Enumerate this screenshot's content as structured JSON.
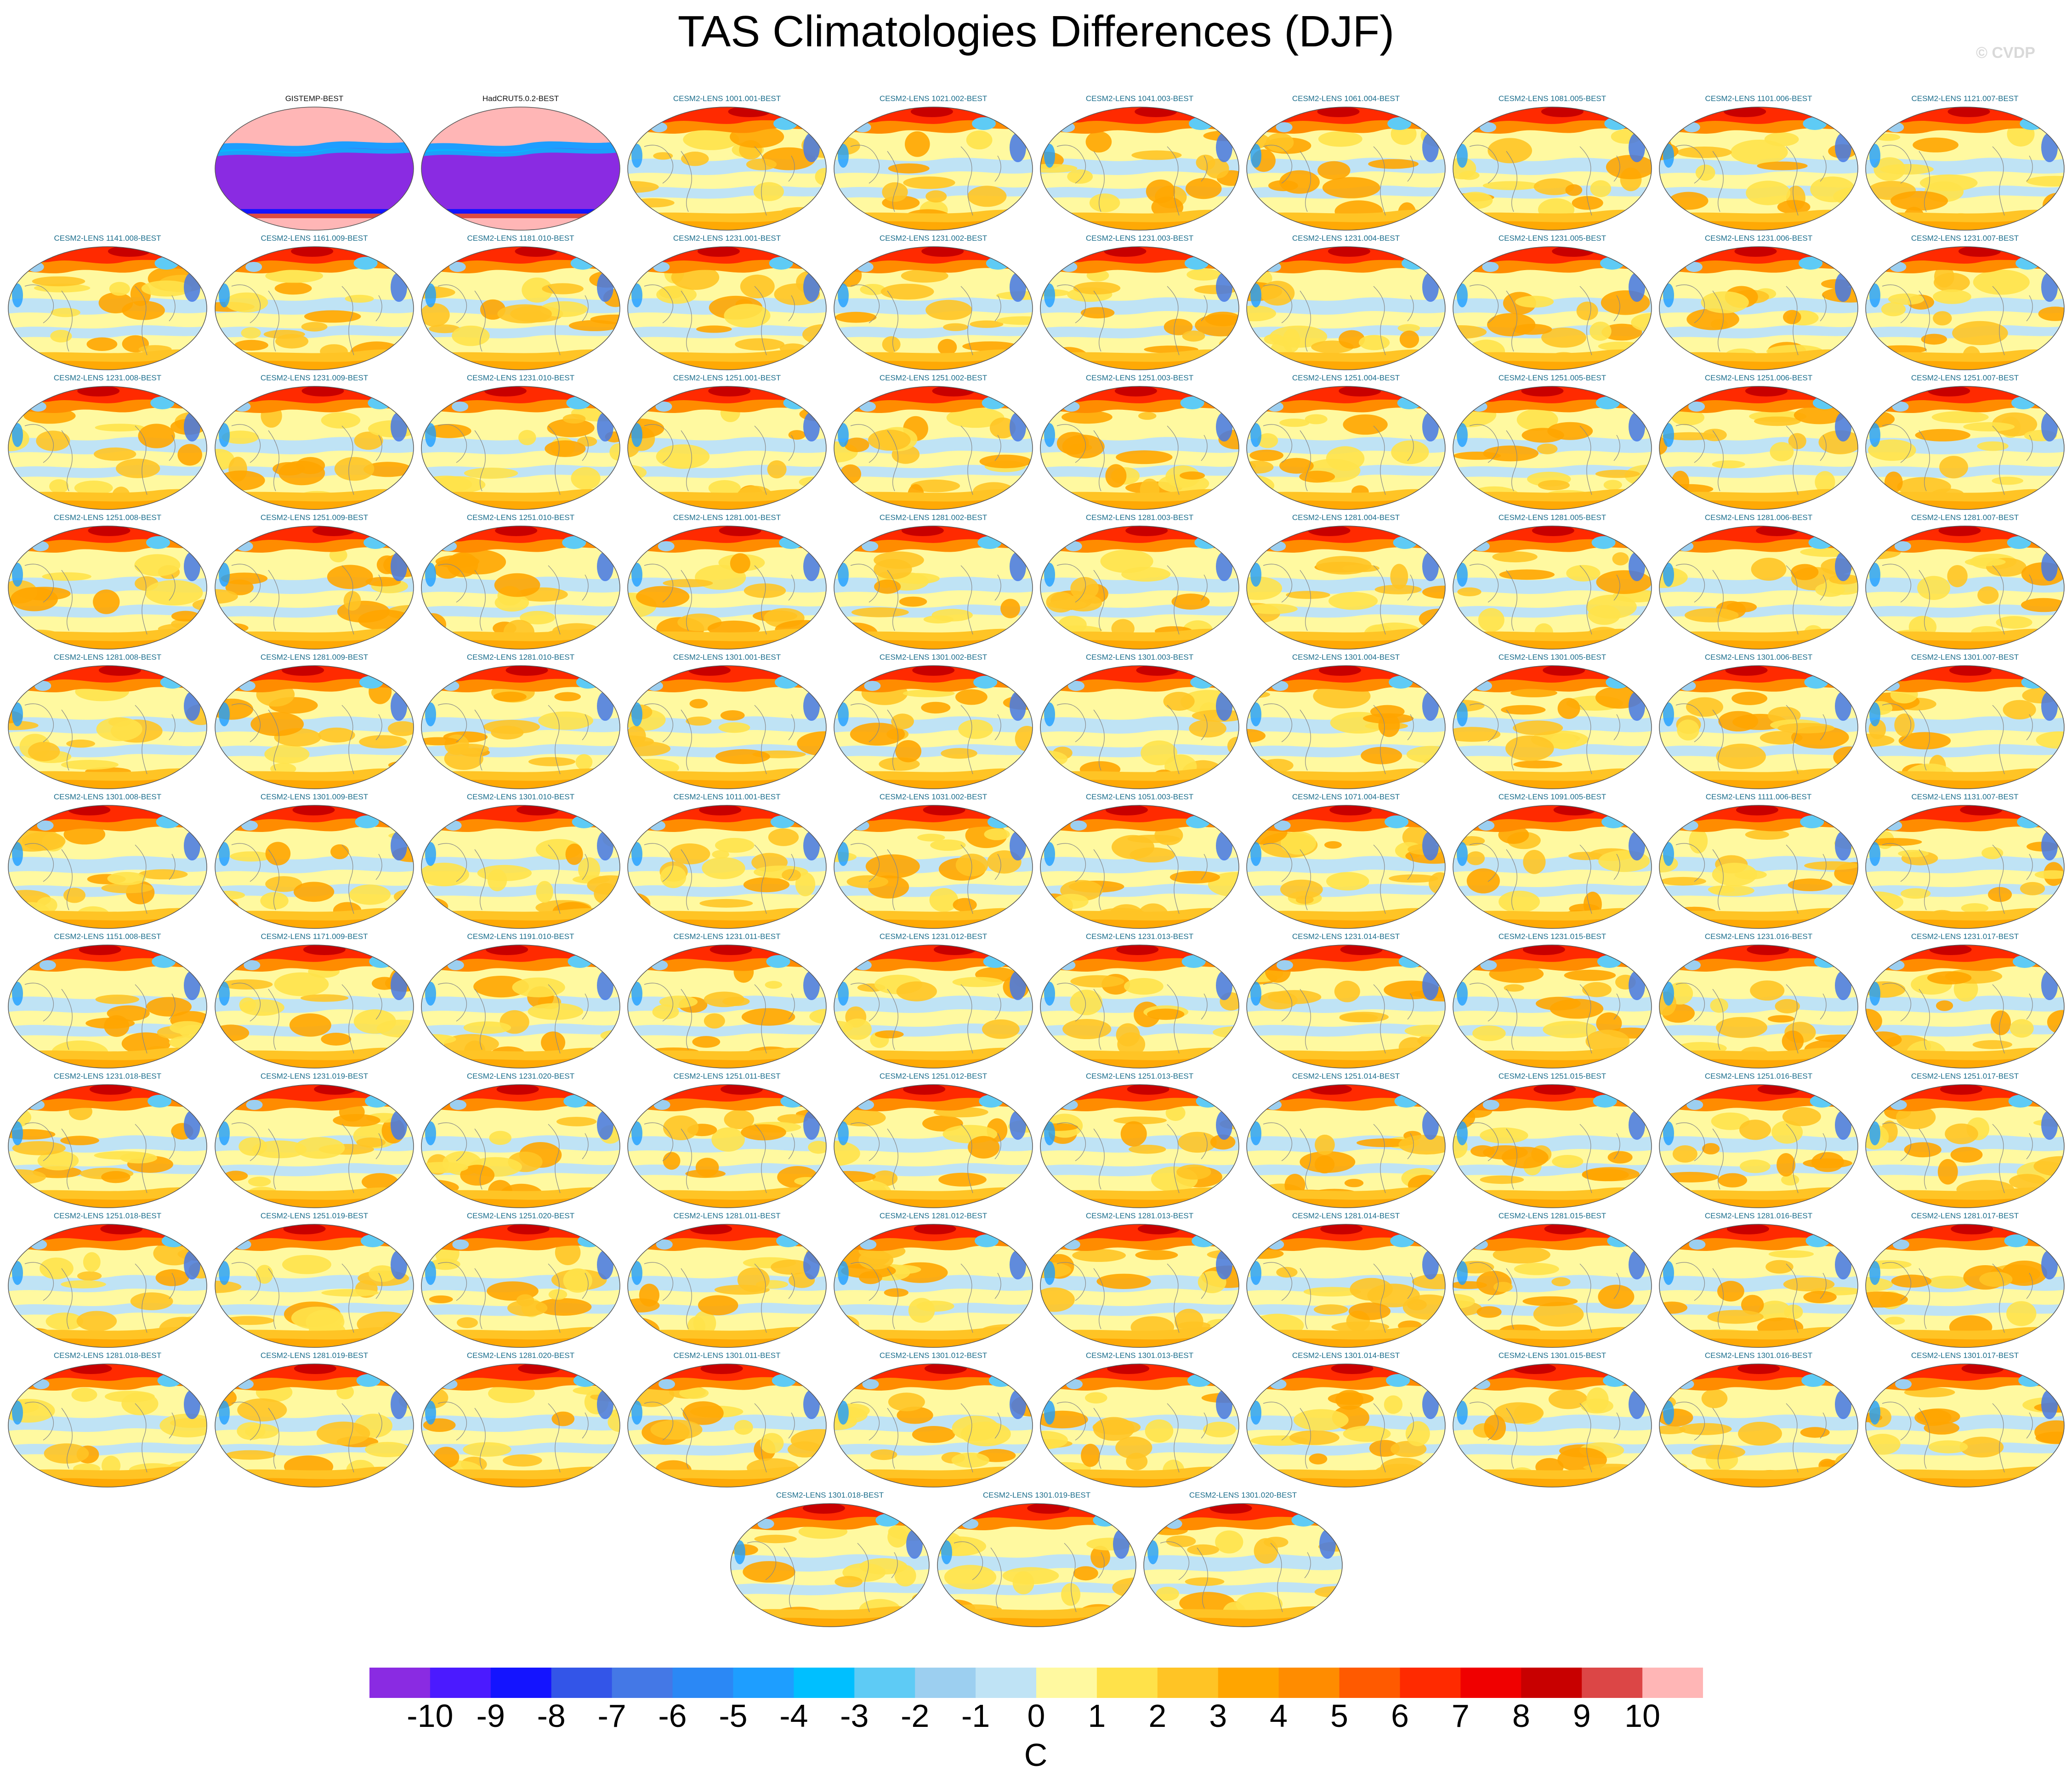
{
  "chart_data": {
    "type": "heatmap",
    "title": "TAS Climatologies Differences (DJF)",
    "watermark": "© CVDP",
    "projection": "global-ellipse-map",
    "colorbar": {
      "units": "C",
      "tick_labels": [
        "-10",
        "-9",
        "-8",
        "-7",
        "-6",
        "-5",
        "-4",
        "-3",
        "-2",
        "-1",
        "0",
        "1",
        "2",
        "3",
        "4",
        "5",
        "6",
        "7",
        "8",
        "9",
        "10"
      ],
      "colors": [
        "#8a2be2",
        "#4b1aff",
        "#1414ff",
        "#3355e8",
        "#4478e6",
        "#2b88f5",
        "#1e9eff",
        "#00bfff",
        "#5ecbf5",
        "#9ccff0",
        "#bfe3f5",
        "#fff9a0",
        "#ffe24a",
        "#ffc425",
        "#ffa500",
        "#ff8c00",
        "#ff5a00",
        "#ff2a00",
        "#f00000",
        "#c80000",
        "#dc4646",
        "#ffb6b6"
      ]
    },
    "panels": [
      {
        "label": "GISTEMP-BEST",
        "kind": "obs"
      },
      {
        "label": "HadCRUT5.0.2-BEST",
        "kind": "obs"
      },
      {
        "label": "CESM2-LENS 1001.001-BEST",
        "kind": "model"
      },
      {
        "label": "CESM2-LENS 1021.002-BEST",
        "kind": "model"
      },
      {
        "label": "CESM2-LENS 1041.003-BEST",
        "kind": "model"
      },
      {
        "label": "CESM2-LENS 1061.004-BEST",
        "kind": "model"
      },
      {
        "label": "CESM2-LENS 1081.005-BEST",
        "kind": "model"
      },
      {
        "label": "CESM2-LENS 1101.006-BEST",
        "kind": "model"
      },
      {
        "label": "CESM2-LENS 1121.007-BEST",
        "kind": "model"
      },
      {
        "label": "CESM2-LENS 1141.008-BEST",
        "kind": "model"
      },
      {
        "label": "CESM2-LENS 1161.009-BEST",
        "kind": "model"
      },
      {
        "label": "CESM2-LENS 1181.010-BEST",
        "kind": "model"
      },
      {
        "label": "CESM2-LENS 1231.001-BEST",
        "kind": "model"
      },
      {
        "label": "CESM2-LENS 1231.002-BEST",
        "kind": "model"
      },
      {
        "label": "CESM2-LENS 1231.003-BEST",
        "kind": "model"
      },
      {
        "label": "CESM2-LENS 1231.004-BEST",
        "kind": "model"
      },
      {
        "label": "CESM2-LENS 1231.005-BEST",
        "kind": "model"
      },
      {
        "label": "CESM2-LENS 1231.006-BEST",
        "kind": "model"
      },
      {
        "label": "CESM2-LENS 1231.007-BEST",
        "kind": "model"
      },
      {
        "label": "CESM2-LENS 1231.008-BEST",
        "kind": "model"
      },
      {
        "label": "CESM2-LENS 1231.009-BEST",
        "kind": "model"
      },
      {
        "label": "CESM2-LENS 1231.010-BEST",
        "kind": "model"
      },
      {
        "label": "CESM2-LENS 1251.001-BEST",
        "kind": "model"
      },
      {
        "label": "CESM2-LENS 1251.002-BEST",
        "kind": "model"
      },
      {
        "label": "CESM2-LENS 1251.003-BEST",
        "kind": "model"
      },
      {
        "label": "CESM2-LENS 1251.004-BEST",
        "kind": "model"
      },
      {
        "label": "CESM2-LENS 1251.005-BEST",
        "kind": "model"
      },
      {
        "label": "CESM2-LENS 1251.006-BEST",
        "kind": "model"
      },
      {
        "label": "CESM2-LENS 1251.007-BEST",
        "kind": "model"
      },
      {
        "label": "CESM2-LENS 1251.008-BEST",
        "kind": "model"
      },
      {
        "label": "CESM2-LENS 1251.009-BEST",
        "kind": "model"
      },
      {
        "label": "CESM2-LENS 1251.010-BEST",
        "kind": "model"
      },
      {
        "label": "CESM2-LENS 1281.001-BEST",
        "kind": "model"
      },
      {
        "label": "CESM2-LENS 1281.002-BEST",
        "kind": "model"
      },
      {
        "label": "CESM2-LENS 1281.003-BEST",
        "kind": "model"
      },
      {
        "label": "CESM2-LENS 1281.004-BEST",
        "kind": "model"
      },
      {
        "label": "CESM2-LENS 1281.005-BEST",
        "kind": "model"
      },
      {
        "label": "CESM2-LENS 1281.006-BEST",
        "kind": "model"
      },
      {
        "label": "CESM2-LENS 1281.007-BEST",
        "kind": "model"
      },
      {
        "label": "CESM2-LENS 1281.008-BEST",
        "kind": "model"
      },
      {
        "label": "CESM2-LENS 1281.009-BEST",
        "kind": "model"
      },
      {
        "label": "CESM2-LENS 1281.010-BEST",
        "kind": "model"
      },
      {
        "label": "CESM2-LENS 1301.001-BEST",
        "kind": "model"
      },
      {
        "label": "CESM2-LENS 1301.002-BEST",
        "kind": "model"
      },
      {
        "label": "CESM2-LENS 1301.003-BEST",
        "kind": "model"
      },
      {
        "label": "CESM2-LENS 1301.004-BEST",
        "kind": "model"
      },
      {
        "label": "CESM2-LENS 1301.005-BEST",
        "kind": "model"
      },
      {
        "label": "CESM2-LENS 1301.006-BEST",
        "kind": "model"
      },
      {
        "label": "CESM2-LENS 1301.007-BEST",
        "kind": "model"
      },
      {
        "label": "CESM2-LENS 1301.008-BEST",
        "kind": "model"
      },
      {
        "label": "CESM2-LENS 1301.009-BEST",
        "kind": "model"
      },
      {
        "label": "CESM2-LENS 1301.010-BEST",
        "kind": "model"
      },
      {
        "label": "CESM2-LENS 1011.001-BEST",
        "kind": "model"
      },
      {
        "label": "CESM2-LENS 1031.002-BEST",
        "kind": "model"
      },
      {
        "label": "CESM2-LENS 1051.003-BEST",
        "kind": "model"
      },
      {
        "label": "CESM2-LENS 1071.004-BEST",
        "kind": "model"
      },
      {
        "label": "CESM2-LENS 1091.005-BEST",
        "kind": "model"
      },
      {
        "label": "CESM2-LENS 1111.006-BEST",
        "kind": "model"
      },
      {
        "label": "CESM2-LENS 1131.007-BEST",
        "kind": "model"
      },
      {
        "label": "CESM2-LENS 1151.008-BEST",
        "kind": "model"
      },
      {
        "label": "CESM2-LENS 1171.009-BEST",
        "kind": "model"
      },
      {
        "label": "CESM2-LENS 1191.010-BEST",
        "kind": "model"
      },
      {
        "label": "CESM2-LENS 1231.011-BEST",
        "kind": "model"
      },
      {
        "label": "CESM2-LENS 1231.012-BEST",
        "kind": "model"
      },
      {
        "label": "CESM2-LENS 1231.013-BEST",
        "kind": "model"
      },
      {
        "label": "CESM2-LENS 1231.014-BEST",
        "kind": "model"
      },
      {
        "label": "CESM2-LENS 1231.015-BEST",
        "kind": "model"
      },
      {
        "label": "CESM2-LENS 1231.016-BEST",
        "kind": "model"
      },
      {
        "label": "CESM2-LENS 1231.017-BEST",
        "kind": "model"
      },
      {
        "label": "CESM2-LENS 1231.018-BEST",
        "kind": "model"
      },
      {
        "label": "CESM2-LENS 1231.019-BEST",
        "kind": "model"
      },
      {
        "label": "CESM2-LENS 1231.020-BEST",
        "kind": "model"
      },
      {
        "label": "CESM2-LENS 1251.011-BEST",
        "kind": "model"
      },
      {
        "label": "CESM2-LENS 1251.012-BEST",
        "kind": "model"
      },
      {
        "label": "CESM2-LENS 1251.013-BEST",
        "kind": "model"
      },
      {
        "label": "CESM2-LENS 1251.014-BEST",
        "kind": "model"
      },
      {
        "label": "CESM2-LENS 1251.015-BEST",
        "kind": "model"
      },
      {
        "label": "CESM2-LENS 1251.016-BEST",
        "kind": "model"
      },
      {
        "label": "CESM2-LENS 1251.017-BEST",
        "kind": "model"
      },
      {
        "label": "CESM2-LENS 1251.018-BEST",
        "kind": "model"
      },
      {
        "label": "CESM2-LENS 1251.019-BEST",
        "kind": "model"
      },
      {
        "label": "CESM2-LENS 1251.020-BEST",
        "kind": "model"
      },
      {
        "label": "CESM2-LENS 1281.011-BEST",
        "kind": "model"
      },
      {
        "label": "CESM2-LENS 1281.012-BEST",
        "kind": "model"
      },
      {
        "label": "CESM2-LENS 1281.013-BEST",
        "kind": "model"
      },
      {
        "label": "CESM2-LENS 1281.014-BEST",
        "kind": "model"
      },
      {
        "label": "CESM2-LENS 1281.015-BEST",
        "kind": "model"
      },
      {
        "label": "CESM2-LENS 1281.016-BEST",
        "kind": "model"
      },
      {
        "label": "CESM2-LENS 1281.017-BEST",
        "kind": "model"
      },
      {
        "label": "CESM2-LENS 1281.018-BEST",
        "kind": "model"
      },
      {
        "label": "CESM2-LENS 1281.019-BEST",
        "kind": "model"
      },
      {
        "label": "CESM2-LENS 1281.020-BEST",
        "kind": "model"
      },
      {
        "label": "CESM2-LENS 1301.011-BEST",
        "kind": "model"
      },
      {
        "label": "CESM2-LENS 1301.012-BEST",
        "kind": "model"
      },
      {
        "label": "CESM2-LENS 1301.013-BEST",
        "kind": "model"
      },
      {
        "label": "CESM2-LENS 1301.014-BEST",
        "kind": "model"
      },
      {
        "label": "CESM2-LENS 1301.015-BEST",
        "kind": "model"
      },
      {
        "label": "CESM2-LENS 1301.016-BEST",
        "kind": "model"
      },
      {
        "label": "CESM2-LENS 1301.017-BEST",
        "kind": "model"
      },
      {
        "label": "CESM2-LENS 1301.018-BEST",
        "kind": "model"
      },
      {
        "label": "CESM2-LENS 1301.019-BEST",
        "kind": "model"
      },
      {
        "label": "CESM2-LENS 1301.020-BEST",
        "kind": "model"
      }
    ]
  }
}
